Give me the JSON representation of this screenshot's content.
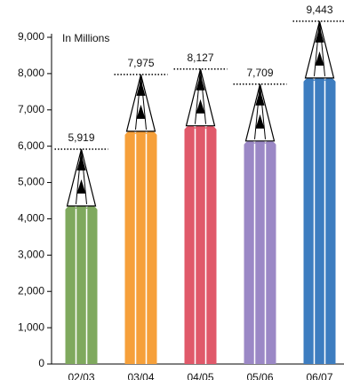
{
  "chart_data": {
    "type": "pencil",
    "annotation": "In Millions",
    "categories": [
      "02/03",
      "03/04",
      "04/05",
      "05/06",
      "06/07"
    ],
    "values": [
      5919,
      7975,
      8127,
      7709,
      9443
    ],
    "value_labels": [
      "5,919",
      "7,975",
      "8,127",
      "7,709",
      "9,443"
    ],
    "colors": [
      "#7fa95e",
      "#f6a03a",
      "#e0596a",
      "#9b88c6",
      "#3d7dc0"
    ],
    "ylim": [
      0,
      9000
    ],
    "yticks": [
      {
        "value": 0,
        "label": "0"
      },
      {
        "value": 1000,
        "label": "1,000"
      },
      {
        "value": 2000,
        "label": "2,000"
      },
      {
        "value": 3000,
        "label": "3,000"
      },
      {
        "value": 4000,
        "label": "4,000"
      },
      {
        "value": 5000,
        "label": "5,000"
      },
      {
        "value": 6000,
        "label": "6,000"
      },
      {
        "value": 7000,
        "label": "7,000"
      },
      {
        "value": 8000,
        "label": "8,000"
      },
      {
        "value": 9000,
        "label": "9,000"
      }
    ]
  }
}
